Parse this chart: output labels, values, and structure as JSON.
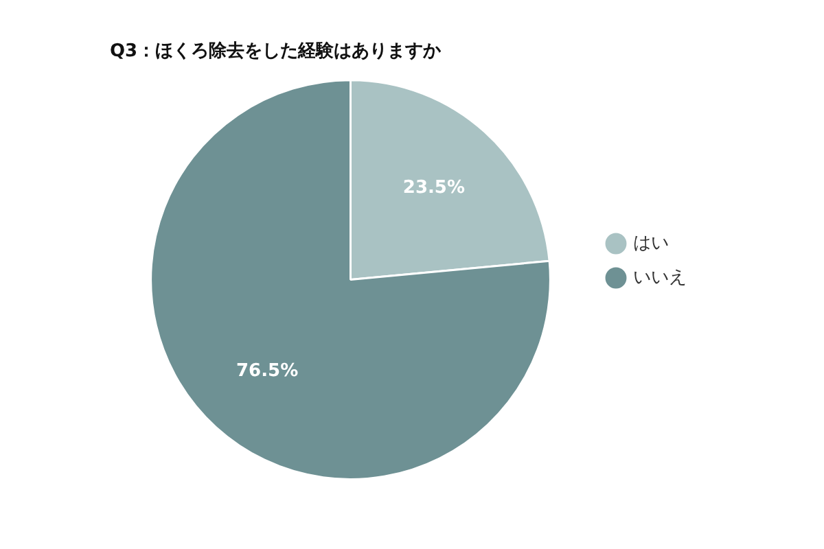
{
  "chart_data": {
    "type": "pie",
    "title": "Q3：ほくろ除去をした経験はありますか",
    "categories": [
      "はい",
      "いいえ"
    ],
    "values": [
      23.5,
      76.5
    ],
    "colors": [
      "#a9c2c3",
      "#6e9194"
    ],
    "value_labels": [
      "23.5%",
      "76.5%"
    ],
    "legend": "right"
  }
}
